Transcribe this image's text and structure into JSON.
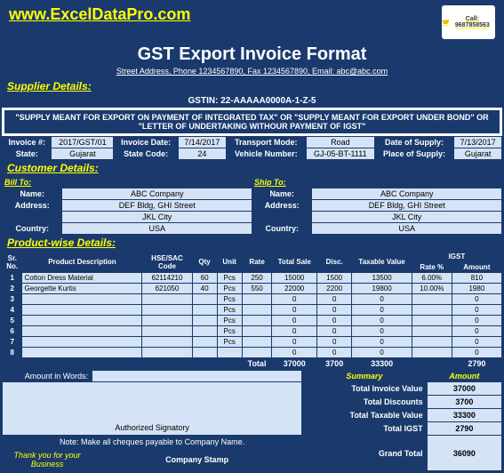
{
  "site_url": "www.ExcelDataPro.com",
  "logo_phone": "Call: 9687858563",
  "title": "GST Export Invoice Format",
  "subtitle": "Street Address, Phone 1234567890, Fax 1234567890, Email: abc@abc.com",
  "supplier_hdr": "Supplier Details:",
  "gstin_lbl": "GSTIN:",
  "gstin": "22-AAAAA0000A-1-Z-5",
  "banner": "\"SUPPLY MEANT FOR EXPORT ON PAYMENT OF INTEGRATED TAX\" OR \"SUPPLY MEANT FOR EXPORT UNDER BOND\" OR \"LETTER OF UNDERTAKING WITHOUR PAYMENT OF IGST\"",
  "inv": {
    "invno_lbl": "Invoice #:",
    "invno": "2017/GST/01",
    "invdate_lbl": "Invoice Date:",
    "invdate": "7/14/2017",
    "tmode_lbl": "Transport Mode:",
    "tmode": "Road",
    "dos_lbl": "Date of Supply:",
    "dos": "7/13/2017",
    "state_lbl": "State:",
    "state": "Gujarat",
    "scode_lbl": "State Code:",
    "scode": "24",
    "vno_lbl": "Vehicle Number:",
    "vno": "GJ-05-BT-1111",
    "pos_lbl": "Place of Supply:",
    "pos": "Gujarat"
  },
  "cust_hdr": "Customer Details:",
  "bill_hdr": "Bill To:",
  "ship_hdr": "Ship To:",
  "name_lbl": "Name:",
  "addr_lbl": "Address:",
  "country_lbl": "Country:",
  "bill": {
    "name": "ABC Company",
    "addr1": "DEF Bldg, GHI Street",
    "addr2": "JKL City",
    "country": "USA"
  },
  "ship": {
    "name": "ABC Company",
    "addr1": "DEF Bldg, GHI Street",
    "addr2": "JKL City",
    "country": "USA"
  },
  "prod_hdr": "Product-wise Details:",
  "cols": {
    "sr": "Sr. No.",
    "desc": "Product Description",
    "hsn": "HSE/SAC Code",
    "qty": "Qty",
    "unit": "Unit",
    "rate": "Rate",
    "total": "Total Sale",
    "disc": "Disc.",
    "taxable": "Taxable Value",
    "igst": "IGST",
    "rate_pct": "Rate %",
    "amt": "Amount"
  },
  "rows": [
    {
      "sr": "1",
      "desc": "Cotton Dress Material",
      "hsn": "62114210",
      "qty": "60",
      "unit": "Pcs",
      "rate": "250",
      "total": "15000",
      "disc": "1500",
      "taxable": "13500",
      "rate_pct": "6.00%",
      "amt": "810"
    },
    {
      "sr": "2",
      "desc": "Georgette Kurtis",
      "hsn": "621050",
      "qty": "40",
      "unit": "Pcs",
      "rate": "550",
      "total": "22000",
      "disc": "2200",
      "taxable": "19800",
      "rate_pct": "10.00%",
      "amt": "1980"
    },
    {
      "sr": "3",
      "desc": "",
      "hsn": "",
      "qty": "",
      "unit": "Pcs",
      "rate": "",
      "total": "0",
      "disc": "0",
      "taxable": "0",
      "rate_pct": "",
      "amt": "0"
    },
    {
      "sr": "4",
      "desc": "",
      "hsn": "",
      "qty": "",
      "unit": "Pcs",
      "rate": "",
      "total": "0",
      "disc": "0",
      "taxable": "0",
      "rate_pct": "",
      "amt": "0"
    },
    {
      "sr": "5",
      "desc": "",
      "hsn": "",
      "qty": "",
      "unit": "Pcs",
      "rate": "",
      "total": "0",
      "disc": "0",
      "taxable": "0",
      "rate_pct": "",
      "amt": "0"
    },
    {
      "sr": "6",
      "desc": "",
      "hsn": "",
      "qty": "",
      "unit": "Pcs",
      "rate": "",
      "total": "0",
      "disc": "0",
      "taxable": "0",
      "rate_pct": "",
      "amt": "0"
    },
    {
      "sr": "7",
      "desc": "",
      "hsn": "",
      "qty": "",
      "unit": "Pcs",
      "rate": "",
      "total": "0",
      "disc": "0",
      "taxable": "0",
      "rate_pct": "",
      "amt": "0"
    },
    {
      "sr": "8",
      "desc": "",
      "hsn": "",
      "qty": "",
      "unit": "",
      "rate": "",
      "total": "0",
      "disc": "0",
      "taxable": "0",
      "rate_pct": "",
      "amt": "0"
    }
  ],
  "totals": {
    "lbl": "Total",
    "total": "37000",
    "disc": "3700",
    "taxable": "33300",
    "amt": "2790"
  },
  "words_lbl": "Amount in Words:",
  "summary_lbl": "Summary",
  "amount_lbl": "Amount",
  "sum": {
    "inv_val_lbl": "Total Invoice Value",
    "inv_val": "37000",
    "disc_lbl": "Total Discounts",
    "disc": "3700",
    "tax_lbl": "Total Taxable Value",
    "tax": "33300",
    "igst_lbl": "Total IGST",
    "igst": "2790",
    "grand_lbl": "Grand Total",
    "grand": "36090"
  },
  "sig": "Authorized Signatory",
  "note": "Note: Make all cheques payable to Company Name.",
  "thanks": "Thank you for your Business",
  "stamp": "Company Stamp"
}
